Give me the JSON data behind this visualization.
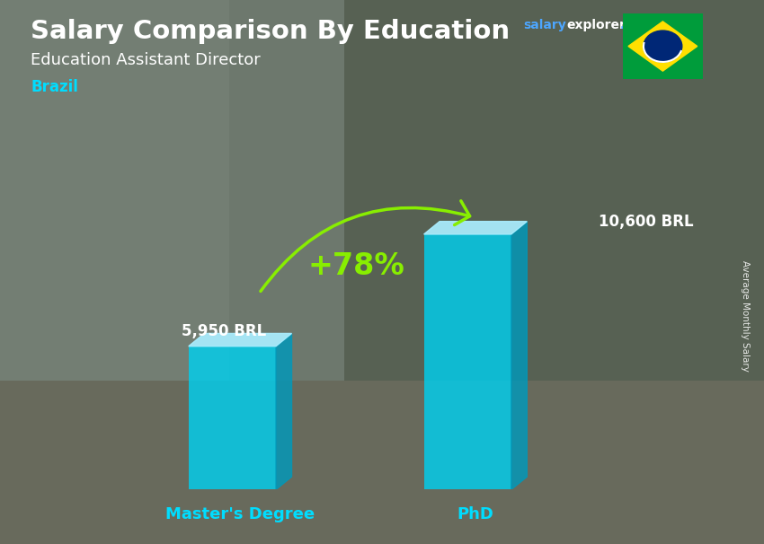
{
  "title": "Salary Comparison By Education",
  "subtitle": "Education Assistant Director",
  "country": "Brazil",
  "ylabel": "Average Monthly Salary",
  "categories": [
    "Master's Degree",
    "PhD"
  ],
  "values": [
    5950,
    10600
  ],
  "value_labels": [
    "5,950 BRL",
    "10,600 BRL"
  ],
  "pct_change": "+78%",
  "bar_color_face": "#00cfee",
  "bar_color_top": "#aaeeff",
  "bar_color_side": "#0099bb",
  "arrow_color": "#88ee00",
  "title_color": "#ffffff",
  "subtitle_color": "#ffffff",
  "country_color": "#00ddff",
  "value_label_color": "#ffffff",
  "xlabel_color": "#00ddff",
  "bg_color": "#8a9a8a",
  "overlay_color": "#556655",
  "bar_width": 0.13,
  "bar_positions": [
    0.3,
    0.65
  ],
  "ylim": [
    0,
    14000
  ],
  "site_salary_color": "#4da6ff",
  "site_explorer_color": "#ffffff",
  "site_com_color": "#4da6ff"
}
